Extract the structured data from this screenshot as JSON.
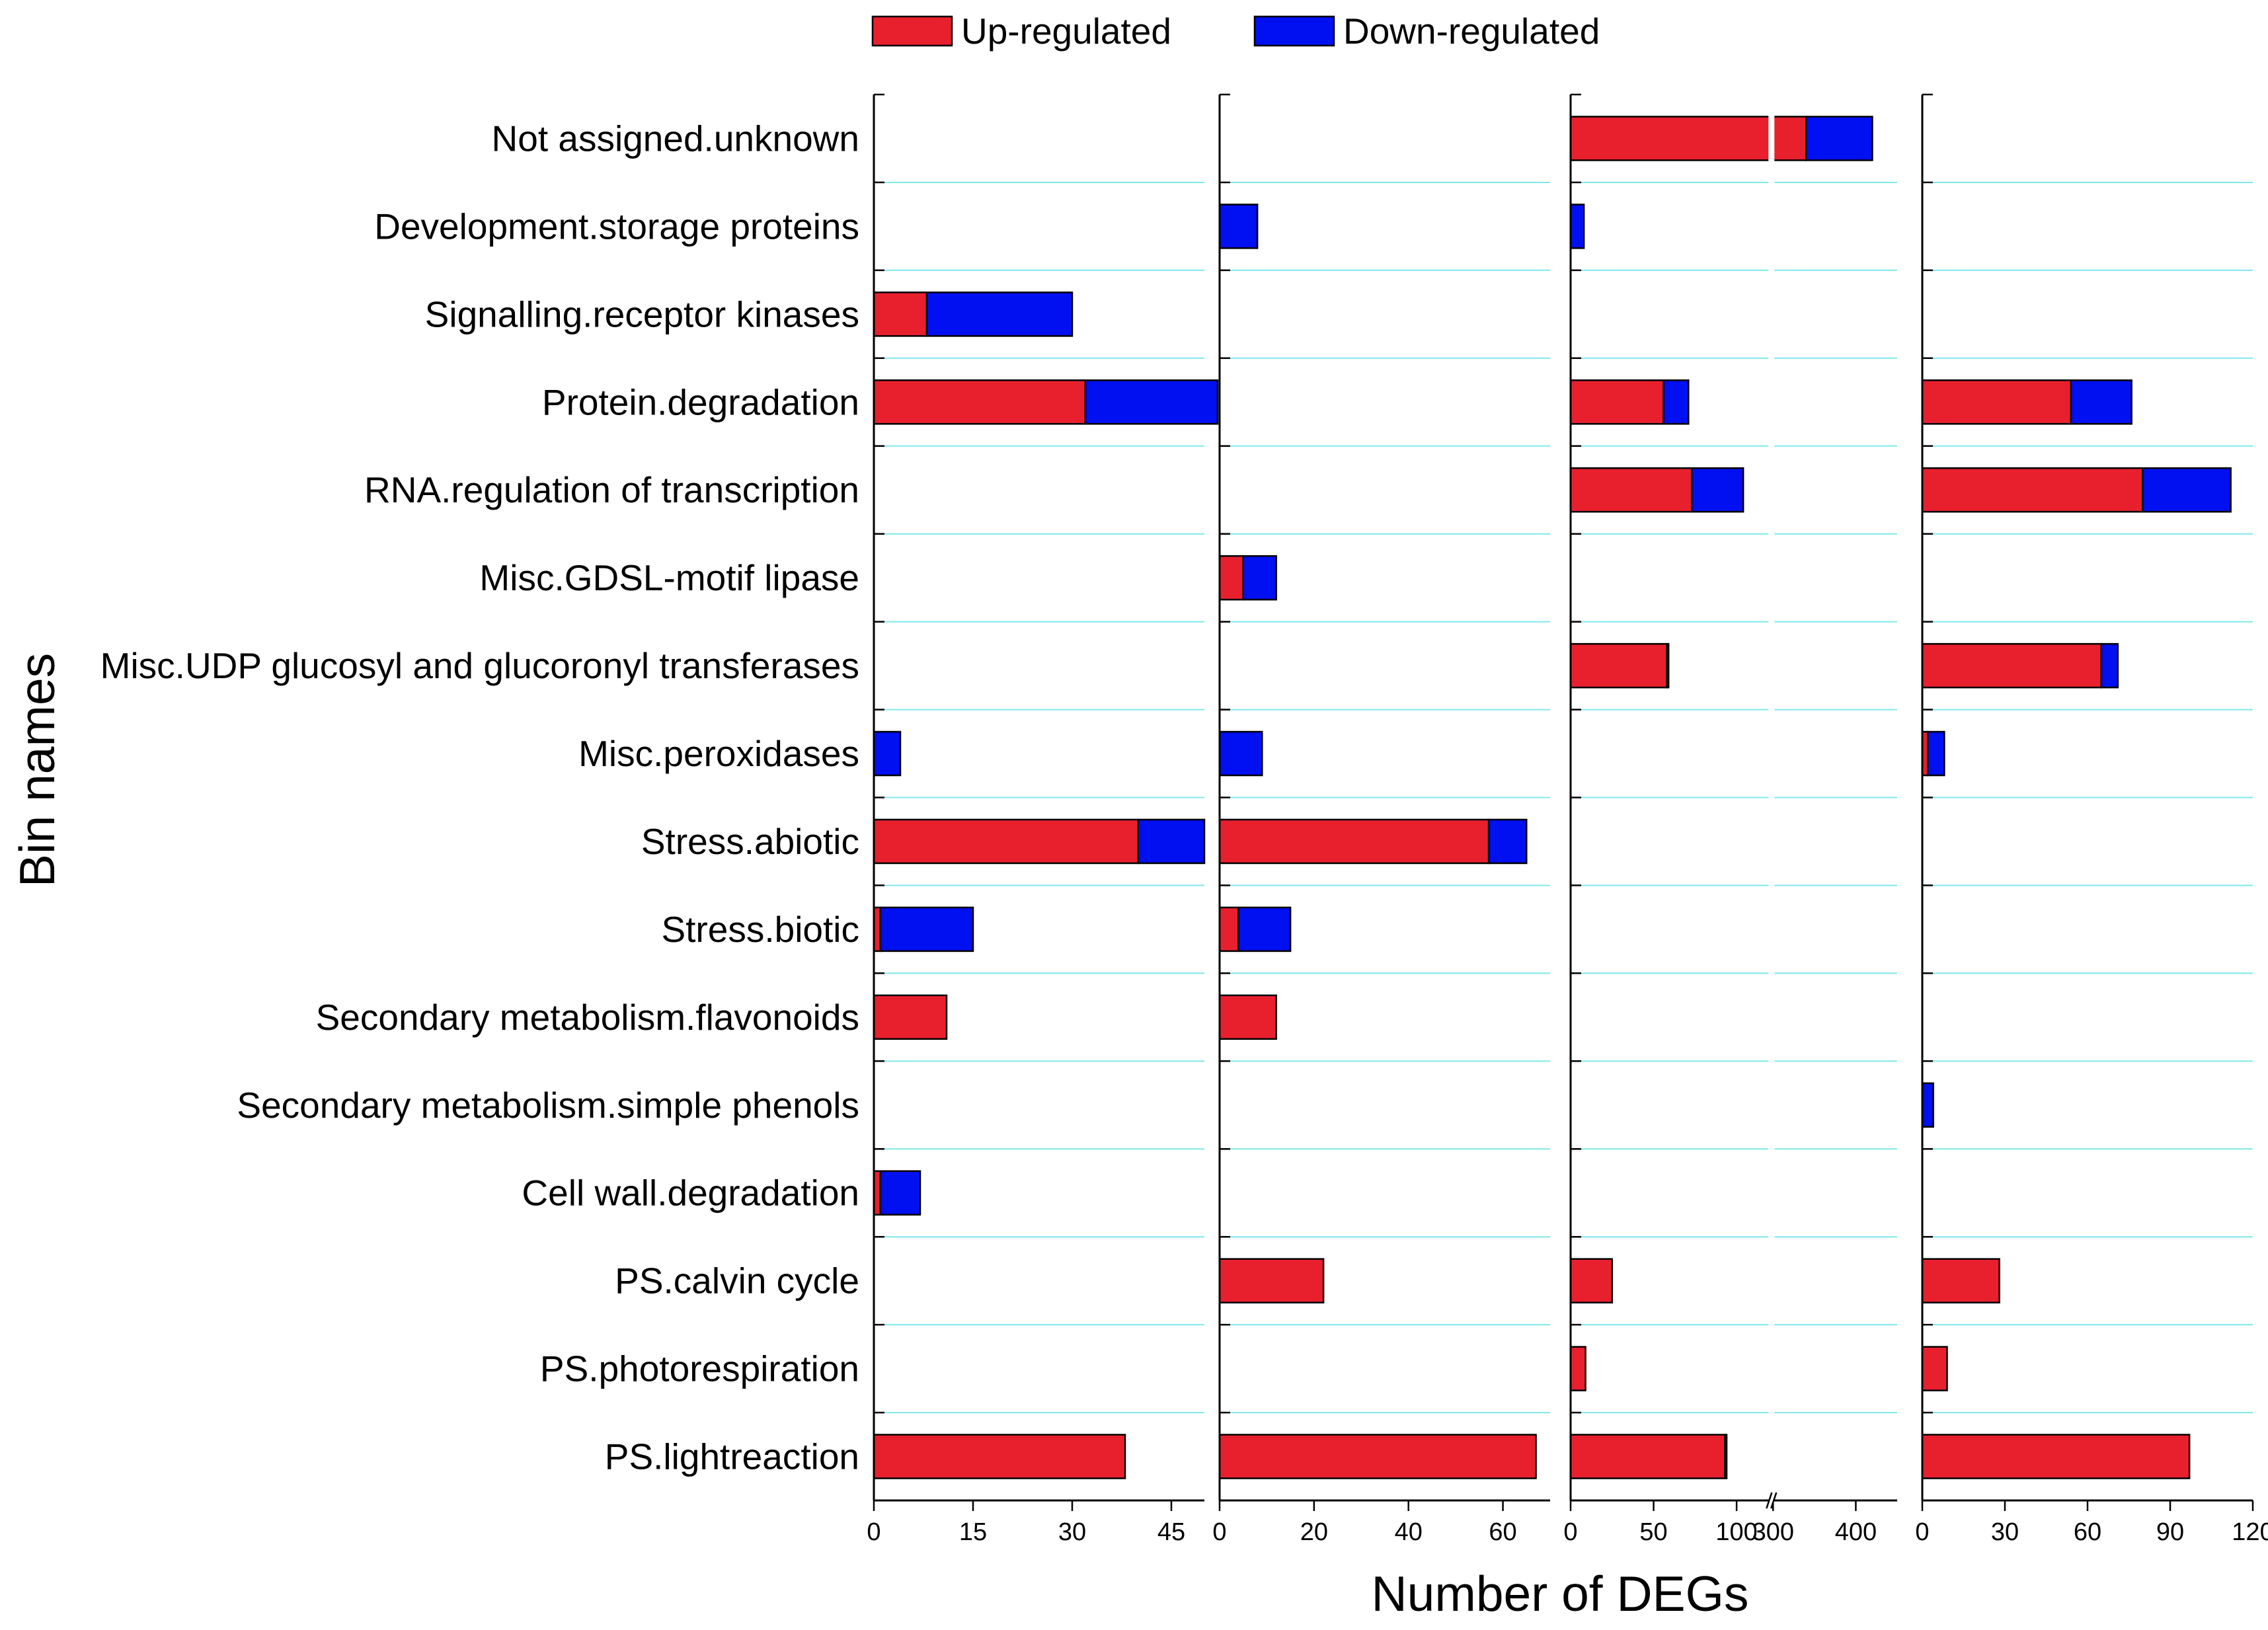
{
  "chart_data": {
    "type": "bar",
    "orientation": "horizontal",
    "stacked": true,
    "ylabel": "Bin names",
    "xlabel": "Number of DEGs",
    "categories": [
      "Not assigned.unknown",
      "Development.storage proteins",
      "Signalling.receptor kinases",
      "Protein.degradation",
      "RNA.regulation of transcription",
      "Misc.GDSL-motif lipase",
      "Misc.UDP glucosyl and glucoronyl transferases",
      "Misc.peroxidases",
      "Stress.abiotic",
      "Stress.biotic",
      "Secondary metabolism.flavonoids",
      "Secondary metabolism.simple phenols",
      "Cell wall.degradation",
      "PS.calvin cycle",
      "PS.photorespiration",
      "PS.lightreaction"
    ],
    "legend": [
      {
        "name": "Up-regulated",
        "color": "#e8202e"
      },
      {
        "name": "Down-regulated",
        "color": "#0010f0"
      }
    ],
    "panels": [
      {
        "xlim": [
          0,
          50
        ],
        "ticks": [
          0,
          15,
          30,
          45
        ],
        "tick_labels": [
          "0",
          "15",
          "30",
          "45"
        ],
        "series": [
          {
            "name": "Up-regulated",
            "values": [
              0,
              0,
              8,
              32,
              0,
              0,
              0,
              0,
              40,
              1,
              11,
              0,
              1,
              0,
              0,
              38
            ]
          },
          {
            "name": "Down-regulated",
            "values": [
              0,
              0,
              22,
              20,
              0,
              0,
              0,
              4,
              10,
              14,
              0,
              0,
              6,
              0,
              0,
              0
            ]
          }
        ]
      },
      {
        "xlim": [
          0,
          70
        ],
        "ticks": [
          0,
          20,
          40,
          60
        ],
        "tick_labels": [
          "0",
          "20",
          "40",
          "60"
        ],
        "series": [
          {
            "name": "Up-regulated",
            "values": [
              0,
              0,
              0,
              0,
              0,
              5,
              0,
              0,
              57,
              4,
              12,
              0,
              0,
              22,
              0,
              67
            ]
          },
          {
            "name": "Down-regulated",
            "values": [
              0,
              8,
              0,
              0,
              0,
              7,
              0,
              9,
              8,
              11,
              0,
              0,
              0,
              0,
              0,
              0
            ]
          }
        ]
      },
      {
        "xlim": [
          0,
          450
        ],
        "axis_break": [
          120,
          300
        ],
        "ticks": [
          0,
          50,
          100,
          300,
          400
        ],
        "tick_labels": [
          "0",
          "50",
          "100",
          "300",
          "400"
        ],
        "series": [
          {
            "name": "Up-regulated",
            "values": [
              340,
              0,
              0,
              56,
              73,
              0,
              58,
              0,
              0,
              0,
              0,
              0,
              0,
              25,
              9,
              93
            ]
          },
          {
            "name": "Down-regulated",
            "values": [
              80,
              8,
              0,
              15,
              31,
              0,
              1,
              0,
              0,
              0,
              0,
              0,
              0,
              0,
              0,
              1
            ]
          }
        ]
      },
      {
        "xlim": [
          0,
          120
        ],
        "ticks": [
          0,
          30,
          60,
          90,
          120
        ],
        "tick_labels": [
          "0",
          "30",
          "60",
          "90",
          "120"
        ],
        "series": [
          {
            "name": "Up-regulated",
            "values": [
              0,
              0,
              0,
              54,
              80,
              0,
              65,
              2,
              0,
              0,
              0,
              0,
              0,
              28,
              9,
              97
            ]
          },
          {
            "name": "Down-regulated",
            "values": [
              0,
              0,
              0,
              22,
              32,
              0,
              6,
              6,
              0,
              0,
              0,
              4,
              0,
              0,
              0,
              0
            ]
          }
        ]
      }
    ]
  }
}
